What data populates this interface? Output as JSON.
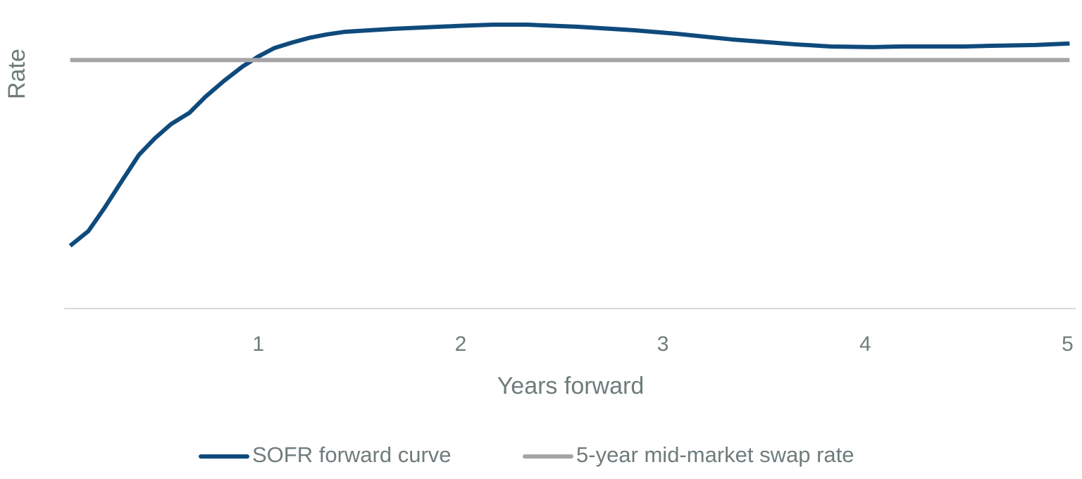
{
  "chart_data": {
    "type": "line",
    "ylabel": "Rate",
    "xlabel": "Years forward",
    "xlim": [
      0.04,
      5.04
    ],
    "xticks": [
      1,
      2,
      3,
      4,
      5
    ],
    "ylim": [
      0,
      100
    ],
    "grid": false,
    "legend": "bottom",
    "series": [
      {
        "name": "SOFR forward curve",
        "color": "#0f4a7c",
        "x": [
          0.07,
          0.16,
          0.24,
          0.33,
          0.41,
          0.49,
          0.57,
          0.66,
          0.74,
          0.83,
          0.92,
          1.0,
          1.08,
          1.17,
          1.25,
          1.34,
          1.43,
          1.67,
          1.99,
          2.16,
          2.33,
          2.58,
          2.86,
          3.07,
          3.34,
          3.66,
          3.83,
          4.04,
          4.18,
          4.49,
          4.6,
          4.84,
          5.01
        ],
        "values": [
          21.3,
          26.3,
          34.2,
          43.8,
          52.2,
          57.9,
          62.7,
          66.5,
          72,
          77.3,
          82.1,
          85.6,
          88.5,
          90.4,
          91.9,
          93.1,
          94,
          95,
          96,
          96.4,
          96.4,
          95.7,
          94.5,
          93.3,
          91.4,
          89.7,
          89,
          88.8,
          89,
          89,
          89.2,
          89.5,
          90
        ]
      },
      {
        "name": "5-year mid-market swap rate",
        "color": "#a5a5a7",
        "x": [
          0.07,
          5.01
        ],
        "values": [
          84.4,
          84.4
        ]
      }
    ]
  }
}
